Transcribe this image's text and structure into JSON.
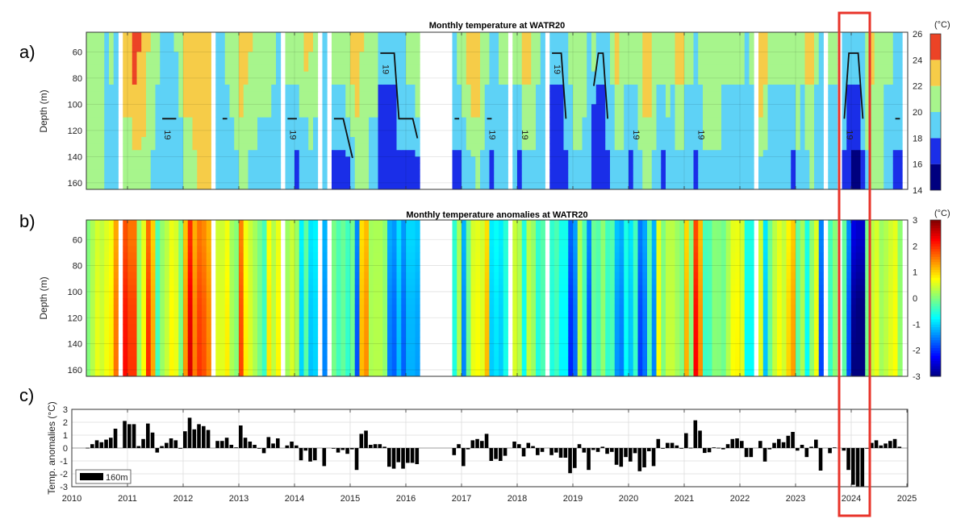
{
  "panel_labels": {
    "a": "a)",
    "b": "b)",
    "c": "c)"
  },
  "highlight": {
    "color": "#e8332a",
    "year": 2024
  },
  "chart_data": [
    {
      "type": "heatmap",
      "title": "Monthly temperature at WATR20",
      "ylabel": "Depth (m)",
      "ylim": [
        45,
        165
      ],
      "y_reversed": true,
      "yticks": [
        60,
        80,
        100,
        120,
        140,
        160
      ],
      "xlim": [
        2010.25,
        2025
      ],
      "colorbar": {
        "label": "(°C)",
        "ticks": [
          14,
          16,
          18,
          20,
          22,
          24,
          26
        ],
        "levels": [
          14,
          16,
          18,
          20,
          22,
          24,
          26
        ],
        "colors": [
          "#00007f",
          "#1a2ee8",
          "#5ed2f6",
          "#a7f58c",
          "#f6cc48",
          "#ec4326"
        ]
      },
      "contour_level": 19,
      "contour_label": "19",
      "start_month": "2010-01",
      "depths": [
        60,
        110,
        155
      ],
      "values": [
        null,
        null,
        null,
        [
          21,
          21,
          21
        ],
        [
          21,
          21,
          21
        ],
        [
          21,
          21,
          20
        ],
        [
          21,
          21,
          20
        ],
        [
          19,
          19,
          19
        ],
        [
          21,
          19,
          19
        ],
        [
          19,
          19,
          19
        ],
        null,
        [
          23,
          22,
          21
        ],
        [
          23,
          22,
          21
        ],
        [
          25,
          23,
          21
        ],
        [
          24,
          23,
          21
        ],
        [
          23,
          23,
          20
        ],
        [
          22,
          21,
          20
        ],
        [
          21,
          21,
          19
        ],
        [
          21,
          19,
          19
        ],
        [
          19,
          19,
          18.5
        ],
        [
          19,
          19,
          18
        ],
        [
          19,
          19,
          18
        ],
        [
          20,
          19,
          18.5
        ],
        [
          21,
          20,
          19
        ],
        [
          23,
          22,
          21
        ],
        [
          23,
          22,
          21
        ],
        [
          23,
          23,
          21
        ],
        [
          23,
          23,
          22
        ],
        [
          23,
          23,
          22
        ],
        [
          23,
          23,
          22
        ],
        null,
        [
          19,
          19,
          19
        ],
        [
          19,
          19,
          18.5
        ],
        [
          21,
          19,
          18.5
        ],
        [
          21,
          20,
          19
        ],
        [
          21,
          21,
          19
        ],
        [
          23,
          22,
          20
        ],
        [
          23,
          21,
          20
        ],
        [
          22,
          21,
          19
        ],
        [
          21,
          21,
          19
        ],
        [
          21,
          20,
          19
        ],
        [
          21,
          20,
          19
        ],
        [
          21,
          20,
          19
        ],
        [
          21,
          19,
          19
        ],
        [
          19,
          19,
          19
        ],
        null,
        [
          21,
          19,
          18
        ],
        [
          21,
          19,
          18.5
        ],
        [
          21,
          19,
          17
        ],
        [
          21,
          20,
          19
        ],
        [
          23,
          20,
          19
        ],
        [
          22,
          21,
          19
        ],
        [
          21,
          20,
          19
        ],
        null,
        [
          19,
          19,
          19
        ],
        null,
        [
          21,
          19,
          17
        ],
        [
          21,
          19,
          17
        ],
        [
          21,
          19,
          17
        ],
        [
          21,
          20,
          17
        ],
        [
          23,
          21,
          18
        ],
        [
          23,
          22,
          20
        ],
        [
          22,
          21,
          20
        ],
        [
          21,
          21,
          20
        ],
        [
          21,
          20,
          19
        ],
        [
          21,
          20,
          19
        ],
        [
          19,
          17,
          17
        ],
        [
          19,
          17,
          17
        ],
        [
          19,
          17,
          17
        ],
        [
          19,
          17,
          17
        ],
        [
          19,
          19,
          17
        ],
        [
          19,
          19,
          17
        ],
        [
          21,
          19,
          17
        ],
        [
          21,
          19,
          17
        ],
        [
          21,
          20,
          17
        ],
        null,
        null,
        null,
        null,
        null,
        null,
        null,
        [
          19,
          19,
          17
        ],
        [
          21,
          19,
          17
        ],
        [
          21,
          20,
          19
        ],
        [
          23,
          21,
          19
        ],
        [
          23,
          22,
          19
        ],
        [
          23,
          22,
          20
        ],
        [
          21,
          21,
          19
        ],
        [
          21,
          19,
          18
        ],
        [
          19,
          19,
          17
        ],
        [
          19,
          19,
          19
        ],
        [
          21,
          19,
          18
        ],
        [
          21,
          19,
          19
        ],
        null,
        [
          21,
          19,
          19
        ],
        [
          21,
          19,
          17
        ],
        [
          23,
          21,
          19
        ],
        [
          23,
          21,
          19
        ],
        [
          21,
          21,
          19
        ],
        [
          21,
          19,
          19
        ],
        [
          19,
          19,
          18
        ],
        null,
        [
          19,
          17,
          17
        ],
        [
          19,
          17,
          17
        ],
        [
          19,
          17,
          17
        ],
        [
          19,
          19,
          17
        ],
        [
          21,
          19,
          19
        ],
        [
          21,
          21,
          19
        ],
        [
          21,
          21,
          19
        ],
        [
          21,
          20,
          19
        ],
        [
          19,
          19,
          19
        ],
        [
          21,
          17,
          17
        ],
        [
          19,
          17,
          17
        ],
        [
          19,
          17,
          17
        ],
        [
          19,
          19,
          17
        ],
        [
          21,
          19,
          19
        ],
        [
          23,
          21,
          19
        ],
        [
          21,
          21,
          19
        ],
        [
          21,
          19,
          19
        ],
        [
          21,
          19,
          17
        ],
        [
          21,
          19,
          19
        ],
        [
          21,
          21,
          19
        ],
        [
          23,
          22,
          21
        ],
        [
          23,
          22,
          20
        ],
        [
          21,
          21,
          19
        ],
        [
          21,
          19,
          19
        ],
        [
          21,
          19,
          17
        ],
        [
          21,
          20,
          19
        ],
        [
          21,
          19,
          19
        ],
        [
          23,
          21,
          19
        ],
        [
          23,
          21,
          19
        ],
        [
          21,
          19,
          19
        ],
        [
          21,
          19,
          19
        ],
        [
          19,
          19,
          17
        ],
        [
          21,
          19,
          19
        ],
        [
          21,
          21,
          19
        ],
        [
          21,
          21,
          19
        ],
        [
          21,
          21,
          19
        ],
        [
          21,
          21,
          19
        ],
        [
          21,
          19,
          19
        ],
        [
          21,
          19,
          19
        ],
        [
          21,
          19,
          19
        ],
        [
          21,
          19,
          19
        ],
        [
          21,
          19,
          19
        ],
        [
          19,
          19,
          19
        ],
        [
          21,
          19,
          19
        ],
        null,
        [
          23,
          22,
          19
        ],
        [
          23,
          21,
          19
        ],
        [
          21,
          19,
          19
        ],
        [
          21,
          19,
          19
        ],
        [
          21,
          19,
          19
        ],
        [
          21,
          19,
          19
        ],
        [
          21,
          19,
          19
        ],
        [
          21,
          19,
          17
        ],
        [
          21,
          21,
          19
        ],
        [
          21,
          19,
          19
        ],
        [
          23,
          21,
          19
        ],
        [
          23,
          21,
          20
        ],
        [
          21,
          19,
          19
        ],
        [
          19,
          19,
          19
        ],
        null,
        [
          21,
          19,
          19
        ],
        [
          21,
          19,
          19
        ],
        null,
        [
          19,
          19,
          17
        ],
        [
          19,
          17,
          17
        ],
        [
          19,
          17,
          15
        ],
        [
          19,
          17,
          15
        ],
        [
          19,
          19,
          17
        ],
        [
          21,
          21,
          19
        ],
        [
          23,
          21,
          21
        ],
        [
          21,
          21,
          20
        ],
        [
          21,
          21,
          20
        ],
        [
          21,
          19,
          19
        ],
        [
          21,
          19,
          19
        ],
        [
          19,
          19,
          17
        ],
        [
          19,
          19,
          17
        ],
        null
      ]
    },
    {
      "type": "heatmap",
      "title": "Monthly temperature anomalies at WATR20",
      "ylabel": "Depth (m)",
      "ylim": [
        45,
        165
      ],
      "y_reversed": true,
      "yticks": [
        60,
        80,
        100,
        120,
        140,
        160
      ],
      "xlim": [
        2010.25,
        2025
      ],
      "colorbar": {
        "label": "(°C)",
        "ticks": [
          3,
          2,
          1,
          0,
          -1,
          -2,
          -3
        ],
        "range": [
          -3,
          3
        ],
        "colormap": "jet"
      }
    },
    {
      "type": "bar",
      "ylabel": "Temp. anomalies (°C)",
      "ylim": [
        -3,
        3
      ],
      "yticks": [
        -3,
        -2,
        -1,
        0,
        1,
        2,
        3
      ],
      "xlim": [
        2010,
        2025
      ],
      "xticks": [
        "2010",
        "2011",
        "2012",
        "2013",
        "2014",
        "2015",
        "2016",
        "2017",
        "2018",
        "2019",
        "2020",
        "2021",
        "2022",
        "2023",
        "2024",
        "2025"
      ],
      "legend": {
        "label": "160m",
        "placement": "bottom-left"
      },
      "grid": true,
      "start_month": "2010-01",
      "values": [
        null,
        null,
        null,
        0.02,
        0.3,
        0.6,
        0.45,
        0.65,
        0.8,
        1.5,
        null,
        2.1,
        1.85,
        1.85,
        0.15,
        0.7,
        1.9,
        1.2,
        -0.35,
        0.15,
        0.4,
        0.75,
        0.6,
        -0.02,
        1.3,
        2.35,
        1.45,
        1.85,
        1.7,
        1.4,
        null,
        0.55,
        0.55,
        0.8,
        0.25,
        0.05,
        1.75,
        0.8,
        0.5,
        0.25,
        -0.05,
        -0.4,
        0.85,
        0.35,
        0.75,
        null,
        0.2,
        0.5,
        0.2,
        -0.95,
        -0.2,
        -1.05,
        -0.95,
        null,
        -1.4,
        null,
        -0.05,
        -0.35,
        -0.15,
        -0.45,
        -0.1,
        -1.7,
        1.1,
        1.35,
        0.25,
        0.3,
        0.3,
        0.1,
        -1.45,
        -1.6,
        -1.1,
        -1.6,
        -1.15,
        -1.15,
        -1.25,
        null,
        null,
        null,
        null,
        null,
        null,
        null,
        -0.55,
        0.3,
        -1.4,
        -0.1,
        0.6,
        0.7,
        0.55,
        1.1,
        -1.0,
        -0.85,
        -1.0,
        -0.6,
        null,
        0.5,
        0.3,
        -0.65,
        0.4,
        0.15,
        -0.55,
        -0.3,
        null,
        -0.55,
        -0.35,
        -0.75,
        -0.75,
        -1.95,
        -1.55,
        0.3,
        -0.35,
        -1.7,
        -0.15,
        -0.3,
        0.1,
        -0.45,
        -0.3,
        -1.3,
        -1.45,
        -0.7,
        -1.05,
        -0.4,
        -1.8,
        -1.5,
        -0.25,
        -1.4,
        0.7,
        0.0,
        0.4,
        0.4,
        0.2,
        0.0,
        1.15,
        0.02,
        2.15,
        1.35,
        -0.38,
        -0.33,
        0.05,
        0.02,
        -0.1,
        0.3,
        0.7,
        0.75,
        0.55,
        -0.7,
        -0.7,
        null,
        0.55,
        -1.05,
        -0.1,
        0.4,
        0.7,
        0.45,
        0.95,
        1.25,
        -0.2,
        0.25,
        -0.7,
        0.1,
        0.65,
        -1.75,
        null,
        -0.4,
        0.05,
        null,
        -0.2,
        -1.7,
        -2.85,
        -3.0,
        -3.0,
        -0.05,
        0.4,
        0.6,
        0.2,
        0.35,
        0.55,
        0.7,
        0.1,
        null
      ]
    }
  ]
}
